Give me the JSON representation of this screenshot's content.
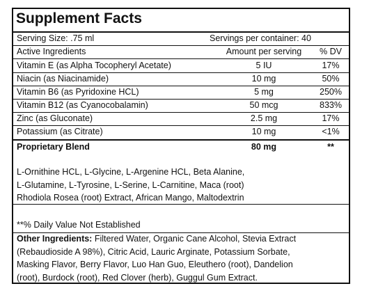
{
  "title": "Supplement Facts",
  "serving_size": "Serving Size: .75 ml",
  "servings_per_container": "Servings per container: 40",
  "headers": {
    "ingredient": "Active Ingredients",
    "amount": "Amount per serving",
    "dv": "% DV"
  },
  "ingredients": [
    {
      "name": "Vitamin E (as Alpha Tocopheryl Acetate)",
      "amount": "5 IU",
      "dv": "17%"
    },
    {
      "name": "Niacin (as Niacinamide)",
      "amount": "10 mg",
      "dv": "50%"
    },
    {
      "name": "Vitamin B6 (as Pyridoxine HCL)",
      "amount": "5 mg",
      "dv": "250%"
    },
    {
      "name": "Vitamin B12 (as Cyanocobalamin)",
      "amount": "50 mcg",
      "dv": "833%"
    },
    {
      "name": "Zinc (as Gluconate)",
      "amount": "2.5 mg",
      "dv": "17%"
    },
    {
      "name": "Potassium (as Citrate)",
      "amount": "10 mg",
      "dv": "<1%"
    }
  ],
  "blend": {
    "name": "Proprietary Blend",
    "amount": "80 mg",
    "dv": "**",
    "lines": [
      "L-Ornithine HCL, L-Glycine, L-Argenine HCL, Beta Alanine,",
      "L-Glutamine,  L-Tyrosine, L-Serine, L-Carnitine, Maca (root)",
      "Rhodiola Rosea (root) Extract, African Mango, Maltodextrin"
    ]
  },
  "footnote": "**% Daily Value Not Established",
  "other": {
    "label": "Other Ingredients:",
    "lines": [
      " Filtered Water, Organic Cane Alcohol, Stevia Extract",
      "(Rebaudioside A 98%), Citric Acid, Lauric Arginate, Potassium Sorbate,",
      "Masking Flavor, Berry Flavor, Luo Han Guo, Eleuthero (root), Dandelion",
      "(root), Burdock (root), Red Clover (herb), Guggul Gum Extract."
    ]
  }
}
